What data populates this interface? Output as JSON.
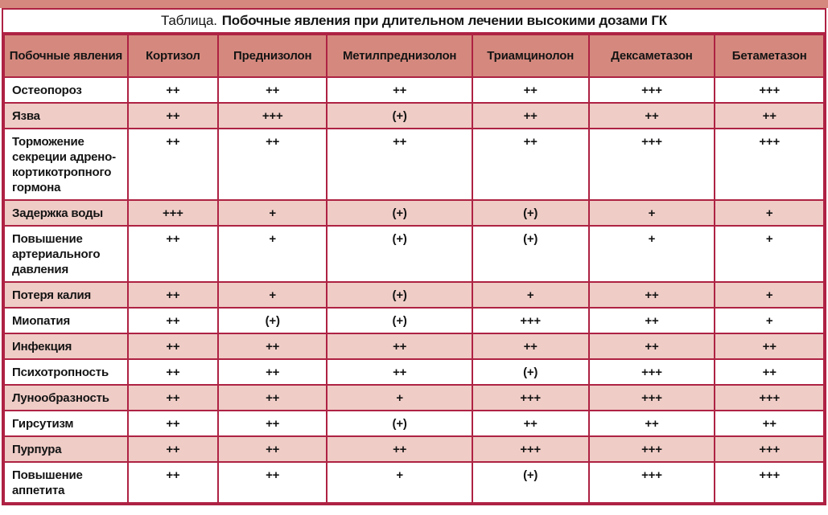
{
  "title": {
    "prefix": "Таблица.",
    "main": "Побочные явления при длительном лечении высокими дозами ГК"
  },
  "table": {
    "corner_header": "Побочные явления",
    "columns": [
      "Кортизол",
      "Преднизолон",
      "Метилпреднизолон",
      "Триамцинолон",
      "Дексаметазон",
      "Бетаметазон"
    ],
    "rows": [
      {
        "label": "Остеопороз",
        "values": [
          "++",
          "++",
          "++",
          "++",
          "+++",
          "+++"
        ]
      },
      {
        "label": "Язва",
        "values": [
          "++",
          "+++",
          "(+)",
          "++",
          "++",
          "++"
        ]
      },
      {
        "label": "Торможение секреции адрено-кортикотропного гормона",
        "values": [
          "++",
          "++",
          "++",
          "++",
          "+++",
          "+++"
        ]
      },
      {
        "label": "Задержка воды",
        "values": [
          "+++",
          "+",
          "(+)",
          "(+)",
          "+",
          "+"
        ]
      },
      {
        "label": "Повышение артериального давления",
        "values": [
          "++",
          "+",
          "(+)",
          "(+)",
          "+",
          "+"
        ]
      },
      {
        "label": "Потеря калия",
        "values": [
          "++",
          "+",
          "(+)",
          "+",
          "++",
          "+"
        ]
      },
      {
        "label": "Миопатия",
        "values": [
          "++",
          "(+)",
          "(+)",
          "+++",
          "++",
          "+"
        ]
      },
      {
        "label": "Инфекция",
        "values": [
          "++",
          "++",
          "++",
          "++",
          "++",
          "++"
        ]
      },
      {
        "label": "Психотропность",
        "values": [
          "++",
          "++",
          "++",
          "(+)",
          "+++",
          "++"
        ]
      },
      {
        "label": "Лунообразность",
        "values": [
          "++",
          "++",
          "+",
          "+++",
          "+++",
          "+++"
        ]
      },
      {
        "label": "Гирсутизм",
        "values": [
          "++",
          "++",
          "(+)",
          "++",
          "++",
          "++"
        ]
      },
      {
        "label": "Пурпура",
        "values": [
          "++",
          "++",
          "++",
          "+++",
          "+++",
          "+++"
        ]
      },
      {
        "label": "Повышение аппетита",
        "values": [
          "++",
          "++",
          "+",
          "(+)",
          "+++",
          "+++"
        ]
      }
    ]
  },
  "colors": {
    "border": "#ae2243",
    "header_bg": "#d5897e",
    "row_alt_bg": "#efccc6",
    "row_bg": "#ffffff",
    "text": "#141414"
  },
  "chart_data": {
    "type": "table",
    "title": "Таблица. Побочные явления при длительном лечении высокими дозами ГК",
    "columns": [
      "Побочные явления",
      "Кортизол",
      "Преднизолон",
      "Метилпреднизолон",
      "Триамцинолон",
      "Дексаметазон",
      "Бетаметазон"
    ],
    "rows": [
      [
        "Остеопороз",
        "++",
        "++",
        "++",
        "++",
        "+++",
        "+++"
      ],
      [
        "Язва",
        "++",
        "+++",
        "(+)",
        "++",
        "++",
        "++"
      ],
      [
        "Торможение секреции адрено-кортикотропного гормона",
        "++",
        "++",
        "++",
        "++",
        "+++",
        "+++"
      ],
      [
        "Задержка воды",
        "+++",
        "+",
        "(+)",
        "(+)",
        "+",
        "+"
      ],
      [
        "Повышение артериального давления",
        "++",
        "+",
        "(+)",
        "(+)",
        "+",
        "+"
      ],
      [
        "Потеря калия",
        "++",
        "+",
        "(+)",
        "+",
        "++",
        "+"
      ],
      [
        "Миопатия",
        "++",
        "(+)",
        "(+)",
        "+++",
        "++",
        "+"
      ],
      [
        "Инфекция",
        "++",
        "++",
        "++",
        "++",
        "++",
        "++"
      ],
      [
        "Психотропность",
        "++",
        "++",
        "++",
        "(+)",
        "+++",
        "++"
      ],
      [
        "Лунообразность",
        "++",
        "++",
        "+",
        "+++",
        "+++",
        "+++"
      ],
      [
        "Гирсутизм",
        "++",
        "++",
        "(+)",
        "++",
        "++",
        "++"
      ],
      [
        "Пурпура",
        "++",
        "++",
        "++",
        "+++",
        "+++",
        "+++"
      ],
      [
        "Повышение аппетита",
        "++",
        "++",
        "+",
        "(+)",
        "+++",
        "+++"
      ]
    ]
  }
}
